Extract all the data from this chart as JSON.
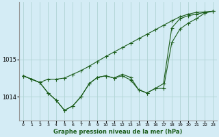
{
  "xlabel": "Graphe pression niveau de la mer (hPa)",
  "background_color": "#d4ecf5",
  "grid_color": "#afd4d4",
  "line_color": "#1a5c1a",
  "xlim": [
    -0.5,
    23.5
  ],
  "ylim": [
    1013.35,
    1016.55
  ],
  "yticks": [
    1014,
    1015
  ],
  "xticks": [
    0,
    1,
    2,
    3,
    4,
    5,
    6,
    7,
    8,
    9,
    10,
    11,
    12,
    13,
    14,
    15,
    16,
    17,
    18,
    19,
    20,
    21,
    22,
    23
  ],
  "series1": [
    1014.56,
    1014.47,
    1014.38,
    1014.47,
    1014.47,
    1014.5,
    1014.6,
    1014.7,
    1014.82,
    1014.95,
    1015.08,
    1015.2,
    1015.32,
    1015.44,
    1015.56,
    1015.68,
    1015.8,
    1015.92,
    1016.04,
    1016.15,
    1016.22,
    1016.27,
    1016.28,
    1016.3
  ],
  "series2": [
    1014.56,
    1014.47,
    1014.38,
    1014.1,
    1013.9,
    1013.63,
    1013.75,
    1014.0,
    1014.35,
    1014.52,
    1014.56,
    1014.5,
    1014.56,
    1014.45,
    1014.18,
    1014.1,
    1014.22,
    1014.22,
    1015.45,
    1015.82,
    1015.98,
    1016.1,
    1016.25,
    1016.3
  ],
  "series3": [
    1014.56,
    1014.47,
    1014.38,
    1014.1,
    1013.9,
    1013.63,
    1013.75,
    1014.0,
    1014.35,
    1014.52,
    1014.56,
    1014.5,
    1014.6,
    1014.52,
    1014.18,
    1014.1,
    1014.22,
    1014.35,
    1015.85,
    1016.1,
    1016.18,
    1016.22,
    1016.27,
    1016.3
  ]
}
